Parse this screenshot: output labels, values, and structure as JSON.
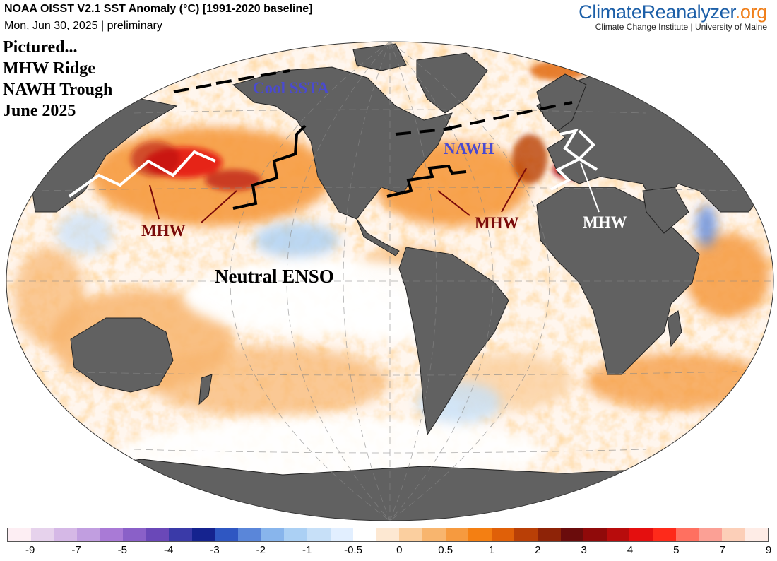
{
  "header": {
    "title": "NOAA OISST V2.1 SST Anomaly (°C) [1991-2020 baseline]",
    "subtitle": "Mon, Jun 30, 2025 | preliminary"
  },
  "brand": {
    "name_main": "ClimateReanalyzer",
    "name_tld": ".org",
    "affiliation": "Climate Change Institute | University of Maine"
  },
  "annotations": {
    "pictured": [
      "Pictured...",
      "MHW Ridge",
      "NAWH Trough",
      "June 2025"
    ],
    "cool_ssta": "Cool SSTA",
    "nawh": "NAWH",
    "mhw_pacific": "MHW",
    "mhw_atlantic": "MHW",
    "mhw_med": "MHW",
    "enso": "Neutral ENSO"
  },
  "colorbar": {
    "colors": [
      "#fdeef3",
      "#e6d2ec",
      "#d5b8e6",
      "#c19ee0",
      "#a97ad6",
      "#8a60c8",
      "#6a48b8",
      "#3a3aa8",
      "#15238f",
      "#2f57c2",
      "#5a86d9",
      "#88b5ec",
      "#abd0f4",
      "#c7e0f8",
      "#e2efff",
      "#ffffff",
      "#fde8d2",
      "#fbcf9f",
      "#f8b56e",
      "#f69a3f",
      "#f47f12",
      "#e06008",
      "#b93f06",
      "#8e2307",
      "#6a0c0c",
      "#900a0a",
      "#b80c0c",
      "#e40f0f",
      "#fe2a1a",
      "#ff7060",
      "#fba095",
      "#fccfb8",
      "#feece6"
    ],
    "labels": [
      "-9",
      "-7",
      "-5",
      "-4",
      "-3",
      "-2",
      "-1",
      "-0.5",
      "0",
      "0.5",
      "1",
      "2",
      "3",
      "4",
      "5",
      "7",
      "9"
    ]
  },
  "colors": {
    "land": "#616161",
    "warm": "#f47f12",
    "hot": "#b80c0c",
    "cool": "#88b5ec",
    "annotation_blue": "#4a4ad0",
    "annotation_red": "#7a0a0a"
  }
}
